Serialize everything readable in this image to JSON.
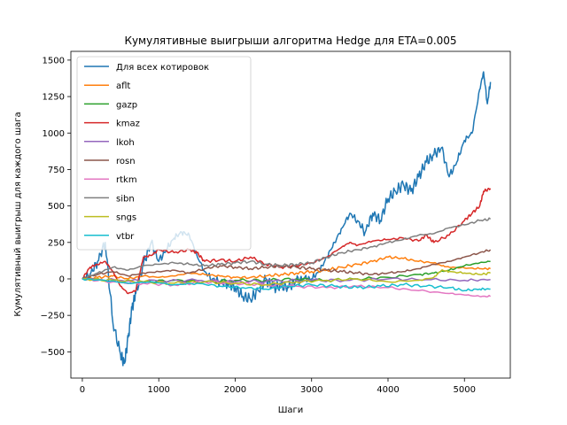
{
  "chart_data": {
    "type": "line",
    "title": "Кумулятивные выигрыши алгоритма Hedge для ETA=0.005",
    "xlabel": "Шаги",
    "ylabel": "Кумулятивный выигрыш для каждого шага",
    "xlim": [
      -150,
      5600
    ],
    "ylim": [
      -680,
      1560
    ],
    "xticks": [
      0,
      1000,
      2000,
      3000,
      4000,
      5000
    ],
    "yticks": [
      -500,
      -250,
      0,
      250,
      500,
      750,
      1000,
      1250,
      1500
    ],
    "grid": false,
    "legend_position": "top-left",
    "series": [
      {
        "name": "Для всех котировок",
        "color": "#1f77b4",
        "x": [
          0,
          100,
          200,
          300,
          400,
          500,
          550,
          600,
          650,
          700,
          800,
          900,
          1000,
          1100,
          1200,
          1300,
          1400,
          1500,
          1600,
          1700,
          1800,
          1900,
          2000,
          2100,
          2200,
          2300,
          2400,
          2500,
          2600,
          2700,
          2800,
          2900,
          3000,
          3100,
          3200,
          3300,
          3400,
          3500,
          3600,
          3700,
          3800,
          3900,
          4000,
          4100,
          4200,
          4300,
          4400,
          4500,
          4600,
          4700,
          4800,
          4900,
          5000,
          5100,
          5200,
          5250,
          5300,
          5340
        ],
        "y": [
          0,
          30,
          120,
          250,
          -300,
          -520,
          -580,
          -400,
          -200,
          -100,
          100,
          250,
          120,
          200,
          280,
          320,
          300,
          160,
          50,
          0,
          -20,
          -30,
          -60,
          -120,
          -140,
          -80,
          0,
          -60,
          -50,
          -60,
          -10,
          0,
          0,
          50,
          150,
          250,
          350,
          450,
          400,
          320,
          450,
          400,
          550,
          600,
          650,
          600,
          700,
          800,
          850,
          900,
          700,
          800,
          950,
          1000,
          1300,
          1420,
          1200,
          1350
        ]
      },
      {
        "name": "aflt",
        "color": "#ff7f0e",
        "x": [
          0,
          200,
          400,
          600,
          800,
          1000,
          1200,
          1400,
          1600,
          1800,
          2000,
          2200,
          2400,
          2600,
          2800,
          3000,
          3200,
          3400,
          3600,
          3800,
          4000,
          4200,
          4400,
          4600,
          4700,
          4800,
          5000,
          5200,
          5340
        ],
        "y": [
          0,
          10,
          20,
          0,
          20,
          10,
          20,
          40,
          30,
          20,
          10,
          10,
          20,
          30,
          40,
          50,
          60,
          80,
          100,
          120,
          150,
          140,
          120,
          110,
          90,
          80,
          75,
          70,
          70
        ]
      },
      {
        "name": "gazp",
        "color": "#2ca02c",
        "x": [
          0,
          400,
          800,
          1200,
          1600,
          2000,
          2400,
          2800,
          3200,
          3600,
          4000,
          4400,
          4600,
          4800,
          5000,
          5200,
          5340
        ],
        "y": [
          0,
          -10,
          -20,
          -10,
          -20,
          -10,
          -10,
          0,
          -10,
          0,
          10,
          30,
          40,
          60,
          90,
          110,
          120
        ]
      },
      {
        "name": "kmaz",
        "color": "#d62728",
        "x": [
          0,
          100,
          200,
          300,
          400,
          500,
          600,
          700,
          800,
          900,
          1000,
          1200,
          1400,
          1500,
          1600,
          1800,
          2000,
          2200,
          2400,
          2600,
          2800,
          3000,
          3200,
          3400,
          3500,
          3600,
          3800,
          4000,
          4200,
          4400,
          4500,
          4600,
          4800,
          5000,
          5100,
          5200,
          5250,
          5340
        ],
        "y": [
          0,
          80,
          100,
          120,
          50,
          -50,
          -100,
          -80,
          150,
          160,
          200,
          180,
          200,
          180,
          120,
          130,
          120,
          150,
          100,
          80,
          90,
          110,
          150,
          220,
          250,
          230,
          260,
          270,
          280,
          260,
          300,
          250,
          300,
          400,
          450,
          500,
          600,
          620
        ]
      },
      {
        "name": "lkoh",
        "color": "#9467bd",
        "x": [
          0,
          500,
          1000,
          1500,
          2000,
          2500,
          3000,
          3500,
          4000,
          4500,
          5000,
          5340
        ],
        "y": [
          0,
          -10,
          -15,
          -10,
          -20,
          -15,
          -10,
          -10,
          0,
          -5,
          -10,
          -5
        ]
      },
      {
        "name": "rosn",
        "color": "#8c564b",
        "x": [
          0,
          200,
          400,
          600,
          800,
          1000,
          1200,
          1400,
          1600,
          1800,
          2000,
          2200,
          2400,
          2600,
          2800,
          3000,
          3200,
          3400,
          3600,
          3800,
          4000,
          4200,
          4400,
          4600,
          4800,
          5000,
          5200,
          5340
        ],
        "y": [
          0,
          30,
          50,
          20,
          40,
          50,
          60,
          40,
          70,
          90,
          80,
          70,
          80,
          90,
          80,
          70,
          60,
          50,
          40,
          30,
          40,
          50,
          70,
          100,
          120,
          150,
          180,
          200
        ]
      },
      {
        "name": "rtkm",
        "color": "#e377c2",
        "x": [
          0,
          400,
          800,
          1200,
          1600,
          2000,
          2400,
          2800,
          3200,
          3600,
          4000,
          4400,
          4800,
          5000,
          5200,
          5340
        ],
        "y": [
          0,
          -20,
          -30,
          -40,
          -20,
          -30,
          -40,
          -50,
          -60,
          -50,
          -60,
          -80,
          -100,
          -110,
          -120,
          -120
        ]
      },
      {
        "name": "sibn",
        "color": "#7f7f7f",
        "x": [
          0,
          200,
          400,
          600,
          800,
          1000,
          1200,
          1400,
          1600,
          1800,
          2000,
          2200,
          2400,
          2600,
          2800,
          3000,
          3200,
          3400,
          3600,
          3800,
          4000,
          4200,
          4400,
          4600,
          4800,
          5000,
          5200,
          5340
        ],
        "y": [
          0,
          40,
          80,
          60,
          90,
          100,
          110,
          100,
          90,
          100,
          110,
          120,
          100,
          90,
          100,
          110,
          150,
          180,
          200,
          220,
          250,
          270,
          300,
          310,
          350,
          370,
          400,
          410
        ]
      },
      {
        "name": "sngs",
        "color": "#bcbd22",
        "x": [
          0,
          400,
          800,
          1200,
          1600,
          2000,
          2400,
          2800,
          3200,
          3600,
          4000,
          4400,
          4600,
          4700,
          4800,
          5000,
          5200,
          5340
        ],
        "y": [
          0,
          -10,
          -20,
          -30,
          -20,
          -30,
          -40,
          -20,
          -10,
          0,
          -20,
          -10,
          10,
          60,
          50,
          40,
          30,
          40
        ]
      },
      {
        "name": "vtbr",
        "color": "#17becf",
        "x": [
          0,
          300,
          600,
          900,
          1200,
          1500,
          1800,
          2100,
          2400,
          2700,
          3000,
          3300,
          3600,
          3900,
          4200,
          4500,
          4800,
          5000,
          5200,
          5340
        ],
        "y": [
          0,
          -10,
          -30,
          -20,
          -40,
          -30,
          -50,
          -60,
          -70,
          -50,
          -40,
          -50,
          -60,
          -50,
          -40,
          -50,
          -60,
          -80,
          -70,
          -70
        ]
      }
    ]
  }
}
